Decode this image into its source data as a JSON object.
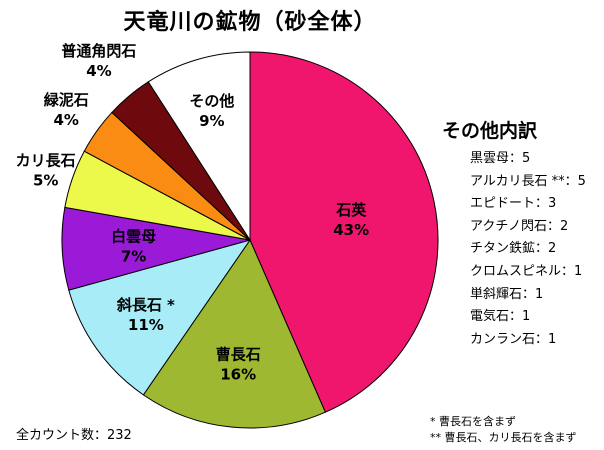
{
  "chart_data": {
    "type": "pie",
    "title": "天竜川の鉱物（砂全体）",
    "slices": [
      {
        "label": "石英",
        "percent_label": "43%",
        "value": 43,
        "color": "#f0166e"
      },
      {
        "label": "曹長石",
        "percent_label": "16%",
        "value": 16,
        "color": "#9eb832"
      },
      {
        "label": "斜長石 *",
        "percent_label": "11%",
        "value": 11,
        "color": "#a8ecf8"
      },
      {
        "label": "白雲母",
        "percent_label": "7%",
        "value": 7,
        "color": "#9a1ad8"
      },
      {
        "label": "カリ長石",
        "percent_label": "5%",
        "value": 5,
        "color": "#ecf84a"
      },
      {
        "label": "緑泥石",
        "percent_label": "4%",
        "value": 4,
        "color": "#fa8c14"
      },
      {
        "label": "普通角閃石",
        "percent_label": "4%",
        "value": 4,
        "color": "#6e0a0e"
      },
      {
        "label": "その他",
        "percent_label": "9%",
        "value": 9,
        "color": "#ffffff"
      }
    ],
    "breakdown": {
      "title": "その他内訳",
      "items": [
        "黒雲母：5",
        "アルカリ長石 **：5",
        "エピドート：3",
        "アクチノ閃石：2",
        "チタン鉄鉱：2",
        "クロムスピネル：1",
        "単斜輝石：1",
        "電気石：1",
        "カンラン石：1"
      ]
    },
    "total_count": "全カウント数：232",
    "notes": [
      "* 曹長石を含まず",
      "** 曹長石、カリ長石を含まず"
    ]
  }
}
